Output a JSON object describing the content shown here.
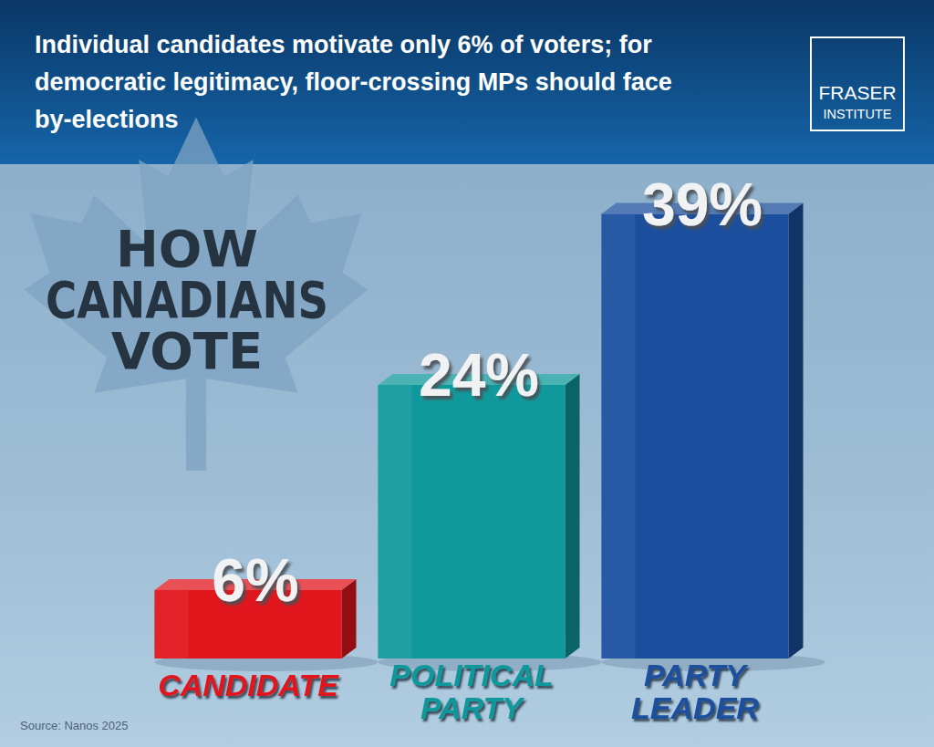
{
  "chart_data": {
    "type": "bar",
    "title": "Individual candidates motivate only 6% of voters; for democratic legitimacy, floor-crossing MPs should face by-elections",
    "subtitle": "HOW CANADIANS VOTE",
    "annotations": [
      "Source: Nanos 2025",
      "FRASER",
      "INSTITUTE"
    ],
    "categories": [
      "CANDIDATE",
      "POLITICAL PARTY",
      "PARTY LEADER"
    ],
    "values": [
      6,
      24,
      39
    ],
    "value_labels": [
      "6%",
      "24%",
      "39%"
    ],
    "colors": [
      "#e0161c",
      "#10999c",
      "#1b4f9e"
    ],
    "ylim": [
      0,
      40
    ],
    "data_labels": true,
    "tick_labels": false,
    "grid": false
  }
}
